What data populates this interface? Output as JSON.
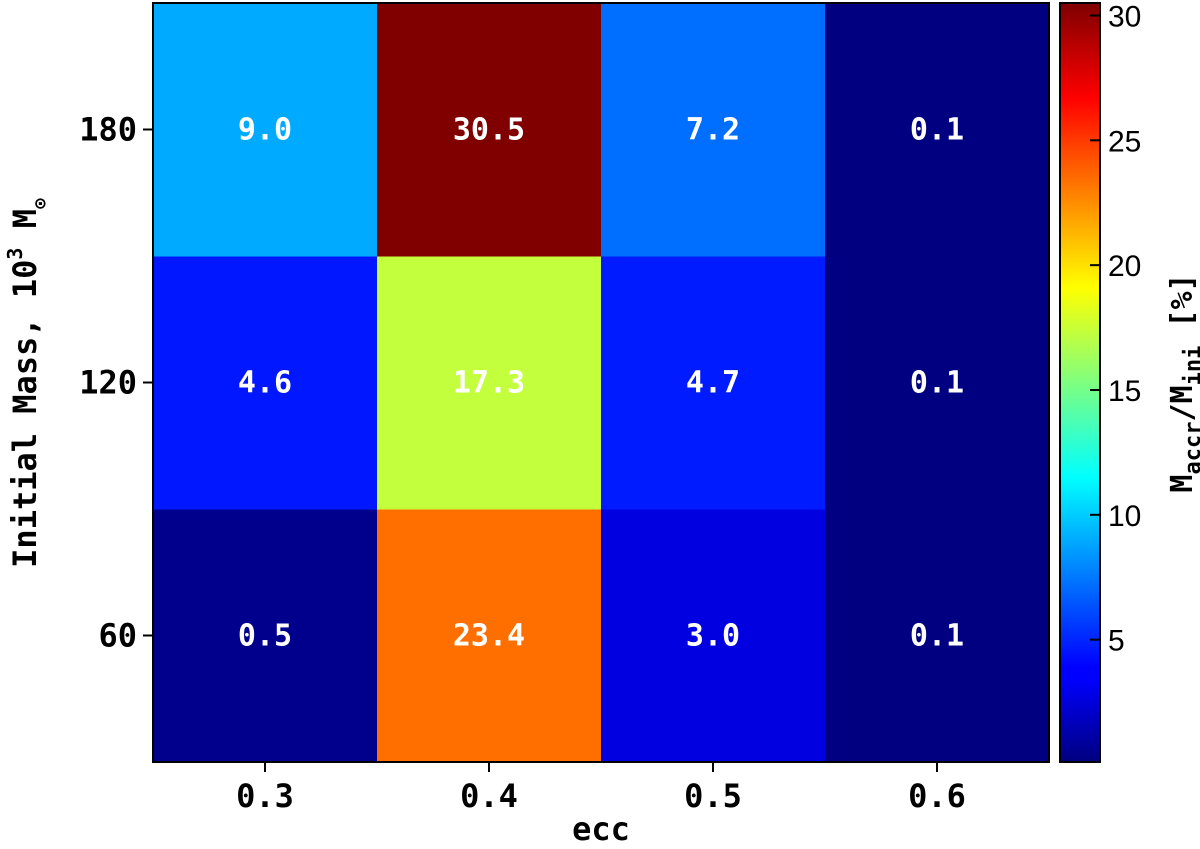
{
  "chart_data": {
    "type": "heatmap",
    "xlabel": "ecc",
    "ylabel": {
      "prefix": "Initial Mass, 10",
      "exponent": "3",
      "unit": "M",
      "unit_symbol": "⊙"
    },
    "x": [
      "0.3",
      "0.4",
      "0.5",
      "0.6"
    ],
    "y": [
      "60",
      "120",
      "180"
    ],
    "values": [
      [
        0.5,
        23.4,
        3.0,
        0.1
      ],
      [
        4.6,
        17.3,
        4.7,
        0.1
      ],
      [
        9.0,
        30.5,
        7.2,
        0.1
      ]
    ],
    "cell_labels": [
      [
        "0.5",
        "23.4",
        "3.0",
        "0.1"
      ],
      [
        "4.6",
        "17.3",
        "4.7",
        "0.1"
      ],
      [
        "9.0",
        "30.5",
        "7.2",
        "0.1"
      ]
    ],
    "colormap": "jet",
    "colorbar": {
      "range": [
        0.1,
        30.5
      ],
      "ticks": [
        5,
        10,
        15,
        20,
        25,
        30
      ],
      "tick_labels": [
        "5",
        "10",
        "15",
        "20",
        "25",
        "30"
      ],
      "label": {
        "main": "M",
        "sub1": "accr",
        "mid": "/M",
        "sub2": "ini",
        "suffix": "[%]"
      }
    }
  }
}
